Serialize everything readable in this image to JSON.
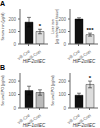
{
  "chart_data": [
    {
      "type": "bar",
      "title": "A",
      "y_label": "Serum iron (μg/dl)",
      "x_label": "HIF-2αiIEC",
      "categories": [
        "vill-Cre",
        "vill-Crei"
      ],
      "values": [
        175,
        100
      ],
      "errors": [
        38,
        18
      ],
      "colors": [
        "#111111",
        "#dddddd"
      ],
      "ylim": [
        0,
        280
      ],
      "yticks": [
        0,
        100,
        200
      ],
      "grid": false,
      "annotations": [
        {
          "text": "*",
          "category": "vill-Crei"
        }
      ]
    },
    {
      "type": "bar",
      "y_label": "Liver iron\n(μg iron/mg wet tissue)",
      "x_label": "HIF-2αiIEC",
      "categories": [
        "vill-Cre",
        "vill-Crei"
      ],
      "values": [
        200,
        75
      ],
      "errors": [
        10,
        12
      ],
      "colors": [
        "#111111",
        "#dddddd"
      ],
      "ylim": [
        0,
        280
      ],
      "yticks": [
        0,
        100,
        200
      ],
      "grid": false,
      "annotations": [
        {
          "text": "***",
          "category": "vill-Crei"
        }
      ]
    },
    {
      "type": "bar",
      "title": "B",
      "y_label": "Serum EPO (pg/ml)",
      "x_label": "HIF-1αiIEC",
      "categories": [
        "vill-Cre",
        "vill-Crei"
      ],
      "values": [
        130,
        115
      ],
      "errors": [
        32,
        20
      ],
      "colors": [
        "#111111",
        "#bbbbbb"
      ],
      "ylim": [
        0,
        260
      ],
      "yticks": [
        0,
        100,
        200
      ],
      "grid": false
    },
    {
      "type": "bar",
      "y_label": "Serum EPO (pg/ml)",
      "x_label": "HIF-2αiIEC",
      "categories": [
        "vill-Cre",
        "vill-Crei"
      ],
      "values": [
        95,
        175
      ],
      "errors": [
        15,
        25
      ],
      "colors": [
        "#111111",
        "#dddddd"
      ],
      "ylim": [
        0,
        260
      ],
      "yticks": [
        0,
        100,
        200
      ],
      "grid": false,
      "annotations": [
        {
          "text": "*",
          "category": "vill-Crei"
        }
      ]
    }
  ]
}
